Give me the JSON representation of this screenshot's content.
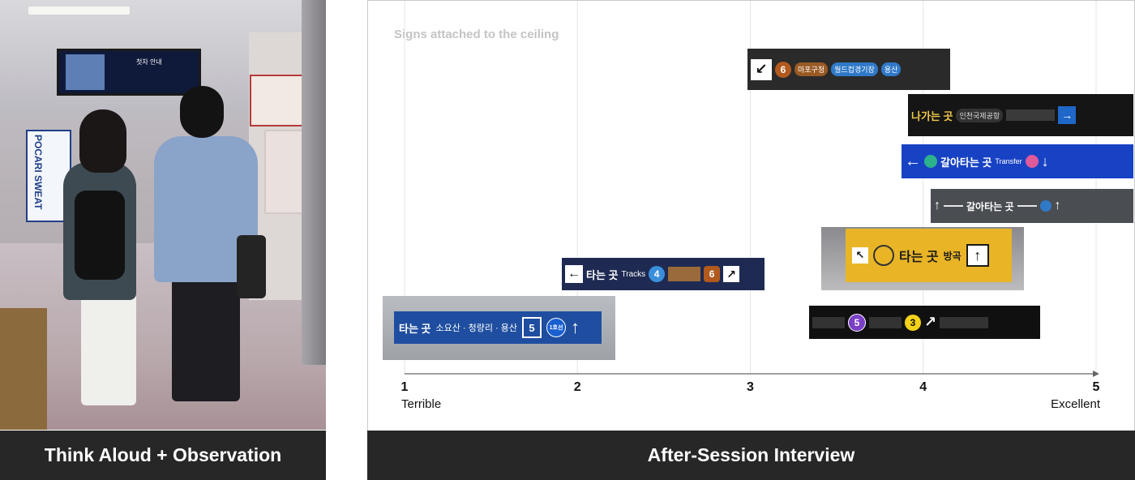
{
  "left": {
    "caption": "Think Aloud + Observation",
    "photo_texts": {
      "tv_title": "첫차 안내",
      "vending": "POCARI SWEAT"
    }
  },
  "right": {
    "caption": "After-Session Interview",
    "chart_data": {
      "type": "scatter",
      "title": "Signs attached to the ceiling",
      "x_ticks": [
        "1",
        "2",
        "3",
        "4",
        "5"
      ],
      "xlim": [
        1,
        5
      ],
      "x_end_labels": {
        "min": "Terrible",
        "max": "Excellent"
      },
      "grid": "vertical",
      "points": [
        {
          "x": 1.0,
          "label": "타는 곳  소요산 · 청량리 · 용산"
        },
        {
          "x": 2.0,
          "label": "타는 곳 Tracks"
        },
        {
          "x": 3.0,
          "label": "6"
        },
        {
          "x": 3.9,
          "label": "나가는 곳"
        },
        {
          "x": 3.9,
          "label": "갈아타는 곳 Transfer"
        },
        {
          "x": 4.1,
          "label": "갈아타는 곳"
        },
        {
          "x": 3.4,
          "label": "타는 곳 방곡"
        },
        {
          "x": 3.3,
          "label": "5 3"
        }
      ]
    },
    "signs": {
      "s1": {
        "title": "타는 곳",
        "sub": "소요산 · 청량리 · 용산",
        "num": "5",
        "line": "1호선",
        "arrow": "↑"
      },
      "s2": {
        "title": "타는 곳",
        "en": "Tracks",
        "num4": "4",
        "num6": "6",
        "arrow_left": "←",
        "arrow_ur": "↗"
      },
      "s3": {
        "arrow": "↙",
        "num": "6",
        "a": "마포구청",
        "b": "월드컵경기장",
        "c": "용산"
      },
      "s4": {
        "title": "나가는 곳",
        "ex": "인천국제공항",
        "arrow": "→"
      },
      "s5": {
        "title": "갈아타는 곳",
        "en": "Transfer",
        "arrow_left": "←",
        "arrow_down": "↓"
      },
      "s6": {
        "title": "갈아타는 곳",
        "arrow_up": "↑",
        "arrow_up2": "↑"
      },
      "s7": {
        "title": "타는 곳",
        "dest": "방곡",
        "arrow": "↑",
        "arrow_ul": "↖"
      },
      "s8": {
        "num5": "5",
        "num3": "3",
        "arrow": "↗"
      }
    }
  }
}
